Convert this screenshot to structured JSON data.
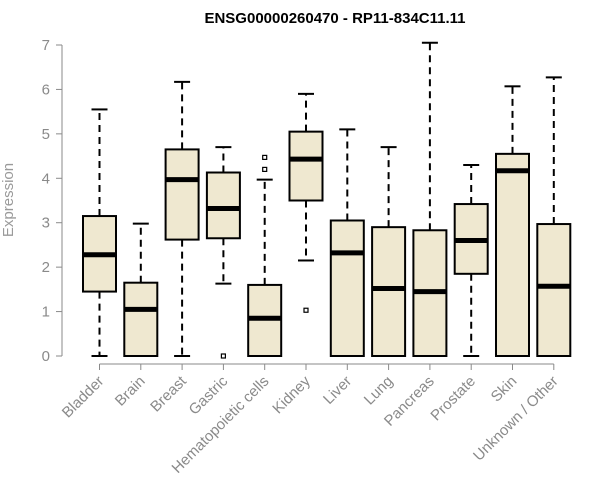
{
  "chart_data": {
    "type": "boxplot",
    "title": "ENSG00000260470 - RP11-834C11.11",
    "ylabel": "Expression",
    "xlabel": "",
    "ylim": [
      0,
      7
    ],
    "yticks": [
      0,
      1,
      2,
      3,
      4,
      5,
      6,
      7
    ],
    "box_fill": "#efe8d0",
    "categories": [
      "Bladder",
      "Brain",
      "Breast",
      "Gastric",
      "Hematopoietic cells",
      "Kidney",
      "Liver",
      "Lung",
      "Pancreas",
      "Prostate",
      "Skin",
      "Unknown / Other"
    ],
    "boxes": [
      {
        "whisker_low": 0.0,
        "q1": 1.45,
        "median": 2.28,
        "q3": 3.15,
        "whisker_high": 5.55,
        "outliers": []
      },
      {
        "whisker_low": 0.0,
        "q1": 0.0,
        "median": 1.05,
        "q3": 1.65,
        "whisker_high": 2.98,
        "outliers": []
      },
      {
        "whisker_low": 0.0,
        "q1": 2.62,
        "median": 3.97,
        "q3": 4.65,
        "whisker_high": 6.17,
        "outliers": []
      },
      {
        "whisker_low": 1.63,
        "q1": 2.65,
        "median": 3.32,
        "q3": 4.13,
        "whisker_high": 4.7,
        "outliers": [
          0.0
        ]
      },
      {
        "whisker_low": 0.0,
        "q1": 0.0,
        "median": 0.85,
        "q3": 1.6,
        "whisker_high": 3.97,
        "outliers": [
          4.2,
          4.47
        ]
      },
      {
        "whisker_low": 2.15,
        "q1": 3.5,
        "median": 4.43,
        "q3": 5.05,
        "whisker_high": 5.9,
        "outliers": [
          1.03
        ]
      },
      {
        "whisker_low": 0.0,
        "q1": 0.0,
        "median": 2.32,
        "q3": 3.05,
        "whisker_high": 5.1,
        "outliers": []
      },
      {
        "whisker_low": 0.0,
        "q1": 0.0,
        "median": 1.52,
        "q3": 2.9,
        "whisker_high": 4.7,
        "outliers": []
      },
      {
        "whisker_low": 0.0,
        "q1": 0.0,
        "median": 1.45,
        "q3": 2.83,
        "whisker_high": 7.05,
        "outliers": []
      },
      {
        "whisker_low": 0.0,
        "q1": 1.85,
        "median": 2.6,
        "q3": 3.42,
        "whisker_high": 4.3,
        "outliers": []
      },
      {
        "whisker_low": 0.0,
        "q1": 0.0,
        "median": 4.17,
        "q3": 4.55,
        "whisker_high": 6.07,
        "outliers": []
      },
      {
        "whisker_low": 0.0,
        "q1": 0.0,
        "median": 1.57,
        "q3": 2.97,
        "whisker_high": 6.27,
        "outliers": []
      }
    ]
  }
}
